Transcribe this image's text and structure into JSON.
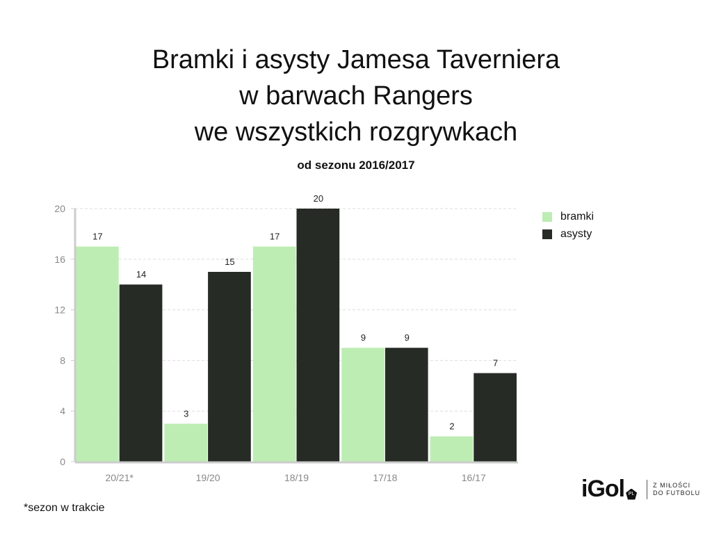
{
  "chart_data": {
    "type": "bar",
    "title": "Bramki i asysty Jamesa Taverniera\nw barwach Rangers\nwe wszystkich rozgrywkach",
    "title_lines": [
      "Bramki i asysty Jamesa Taverniera",
      "w barwach Rangers",
      "we wszystkich rozgrywkach"
    ],
    "subtitle": "od sezonu 2016/2017",
    "categories": [
      "20/21*",
      "19/20",
      "18/19",
      "17/18",
      "16/17"
    ],
    "series": [
      {
        "name": "bramki",
        "color": "#bdedb3",
        "values": [
          17,
          3,
          17,
          9,
          2
        ]
      },
      {
        "name": "asysty",
        "color": "#272b26",
        "values": [
          14,
          15,
          20,
          9,
          7
        ]
      }
    ],
    "ylim": [
      0,
      20
    ],
    "yticks": [
      0,
      4,
      8,
      12,
      16,
      20
    ],
    "grid": true,
    "legend": "top-right",
    "xlabel": "",
    "ylabel": ""
  },
  "footnote": "*sezon w trakcie",
  "logo": {
    "word": "iGol",
    "badge": "PL",
    "tagline": [
      "Z MIŁOŚCI",
      "DO FUTBOLU"
    ]
  }
}
